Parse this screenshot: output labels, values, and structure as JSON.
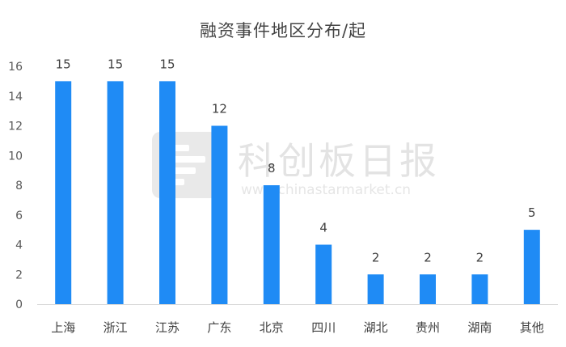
{
  "chart_data": {
    "type": "bar",
    "title": "融资事件地区分布/起",
    "categories": [
      "上海",
      "浙江",
      "江苏",
      "广东",
      "北京",
      "四川",
      "湖北",
      "贵州",
      "湖南",
      "其他"
    ],
    "values": [
      15,
      15,
      15,
      12,
      8,
      4,
      2,
      2,
      2,
      5
    ],
    "ylim": [
      0,
      16
    ],
    "yticks": [
      0,
      2,
      4,
      6,
      8,
      10,
      12,
      14,
      16
    ],
    "grid": false,
    "legend": "none",
    "bar_color": "#1f8bf5",
    "data_labels": true
  },
  "watermark": {
    "name": "科创板日报",
    "url": "www.chinastarmarket.cn",
    "icon": "kcb-logo-icon"
  }
}
